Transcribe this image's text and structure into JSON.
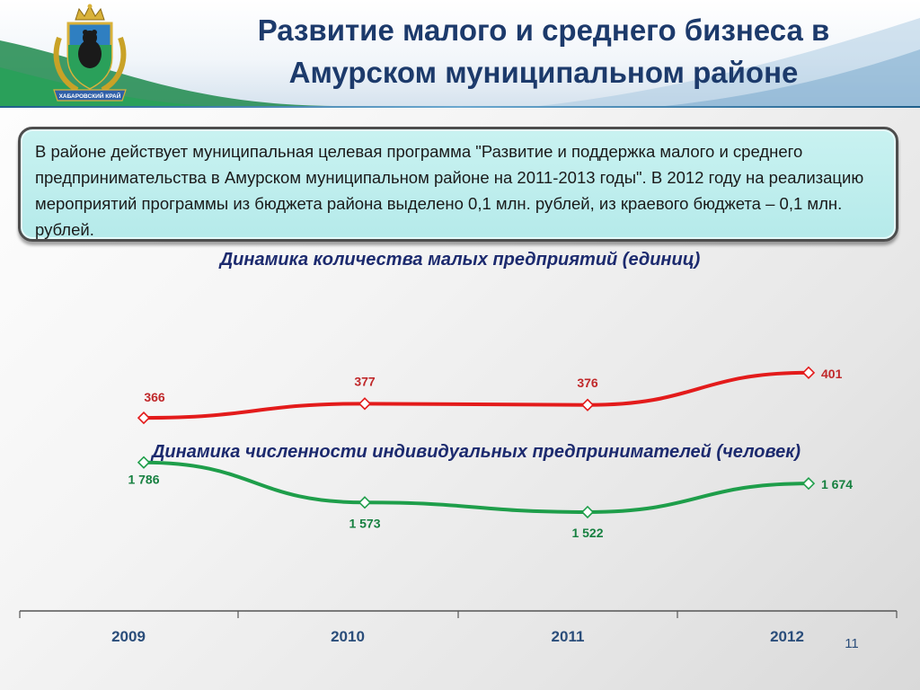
{
  "header": {
    "title_line1": "Развитие малого и среднего бизнеса в",
    "title_line2": "Амурском муниципальном районе",
    "emblem_banner": "ХАБАРОВСКИЙ КРАЙ"
  },
  "info": {
    "text": " В районе действует муниципальная целевая программа \"Развитие и поддержка малого и среднего предпринимательства в Амурском муниципальном районе на 2011-2013 годы\". В 2012 году на реализацию мероприятий программы из бюджета района выделено 0,1 млн. рублей, из краевого бюджета – 0,1 млн. рублей."
  },
  "page_number": "11",
  "colors": {
    "title": "#1c3a6b",
    "small_enterprises": "#e31b1b",
    "entrepreneurs": "#1e9e4a",
    "box_fill": "#bdeeee"
  },
  "chart_data": [
    {
      "type": "line",
      "title": "Динамика количества малых предприятий (единиц)",
      "categories": [
        "2009",
        "2010",
        "2011",
        "2012"
      ],
      "values": [
        366,
        377,
        376,
        401
      ],
      "value_labels": [
        "366",
        "377",
        "376",
        "401"
      ],
      "ylim": [
        300,
        460
      ],
      "color": "#e31b1b",
      "marker": "diamond",
      "grid": false
    },
    {
      "type": "line",
      "title": "Динамика численности индивидуальных предпринимателей (человек)",
      "categories": [
        "2009",
        "2010",
        "2011",
        "2012"
      ],
      "values": [
        1786,
        1573,
        1522,
        1674
      ],
      "value_labels": [
        "1 786",
        "1 573",
        "1 522",
        "1 674"
      ],
      "ylim": [
        900,
        2000
      ],
      "color": "#1e9e4a",
      "marker": "diamond",
      "grid": false
    }
  ]
}
